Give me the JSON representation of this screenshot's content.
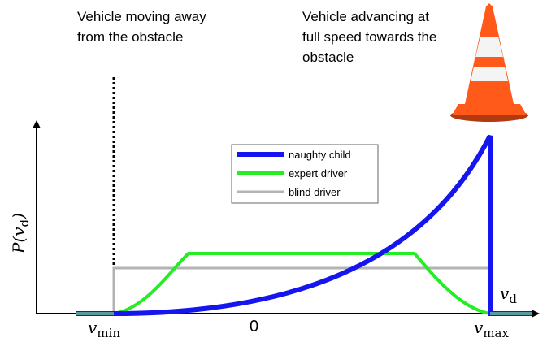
{
  "annotations": {
    "left": [
      "Vehicle moving away",
      "from the obstacle"
    ],
    "right": [
      "Vehicle advancing at",
      "full speed towards the",
      "obstacle"
    ]
  },
  "legend": [
    "naughty child",
    "expert driver",
    "blind driver"
  ],
  "axes": {
    "y_label": {
      "base": "P(v",
      "sub": "d",
      "end": ")"
    },
    "x_label": {
      "base": "v",
      "sub": "d"
    },
    "x_ticks": [
      {
        "base": "v",
        "sub": "min"
      },
      "0",
      {
        "base": "v",
        "sub": "max"
      }
    ]
  }
}
